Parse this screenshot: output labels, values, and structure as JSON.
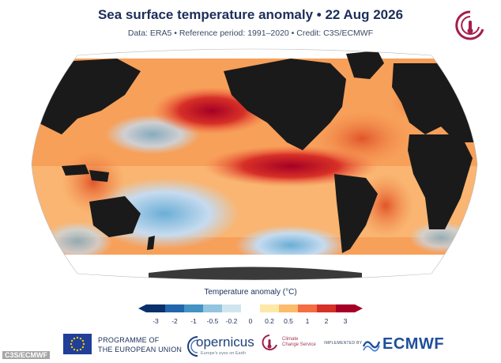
{
  "header": {
    "title": "Sea surface temperature anomaly • 22 Aug 2026",
    "subtitle": "Data: ERA5 • Reference period: 1991–2020 • Credit: C3S/ECMWF"
  },
  "map": {
    "projection": "robinson-like world map",
    "land_color": "#1a1a1a",
    "ice_color": "#ffffff",
    "highlights": [
      "strong warm anomaly in eastern equatorial Pacific",
      "warm North Pacific",
      "warm North Atlantic",
      "cool patches in South Pacific and Southern Ocean"
    ]
  },
  "legend": {
    "title": "Temperature anomaly (°C)",
    "ticks": [
      "-3",
      "-2",
      "-1",
      "-0.5",
      "-0.2",
      "0",
      "0.2",
      "0.5",
      "1",
      "2",
      "3"
    ],
    "colors": [
      "#08306b",
      "#2166ac",
      "#4393c3",
      "#92c5de",
      "#d1e5f0",
      "#ffffff",
      "#fee8a8",
      "#fdbb6c",
      "#f46d43",
      "#d73027",
      "#a50026"
    ]
  },
  "footer": {
    "eu_line1": "PROGRAMME OF",
    "eu_line2": "THE EUROPEAN UNION",
    "copernicus": "opernicus",
    "copernicus_tag": "Europe's eyes on Earth",
    "c3s_line1": "Climate",
    "c3s_line2": "Change Service",
    "implemented_by": "IMPLEMENTED BY",
    "ecmwf": "ECMWF"
  },
  "credit": "C3S/ECMWF"
}
